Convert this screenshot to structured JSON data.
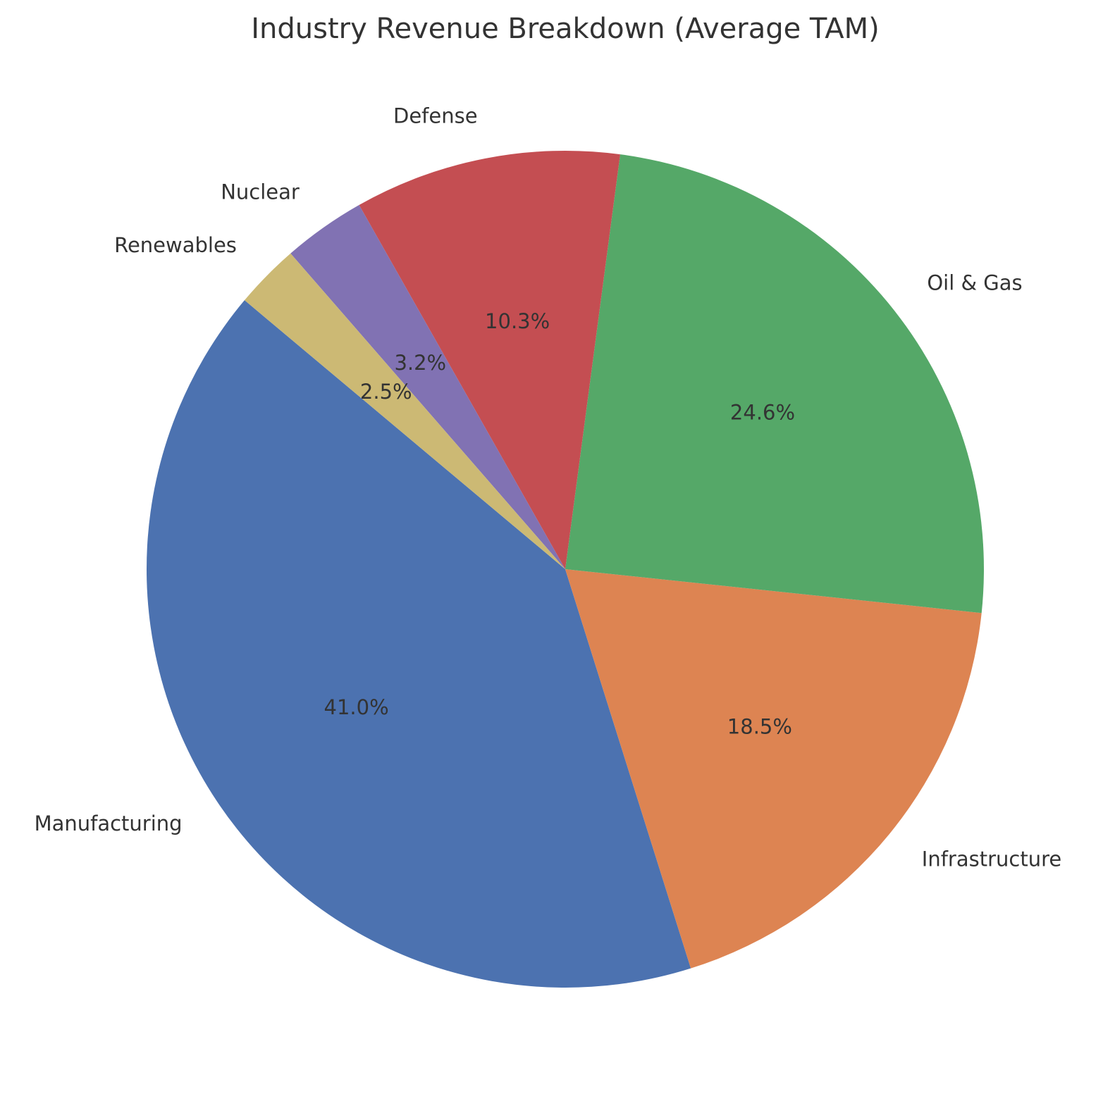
{
  "chart_data": {
    "type": "pie",
    "title": "Industry Revenue Breakdown (Average TAM)",
    "start_angle": 140,
    "direction": "counterclockwise",
    "slices": [
      {
        "label": "Manufacturing",
        "value": 41.0,
        "pct_label": "41.0%",
        "color": "#4c72b0"
      },
      {
        "label": "Infrastructure",
        "value": 18.5,
        "pct_label": "18.5%",
        "color": "#dd8452"
      },
      {
        "label": "Oil & Gas",
        "value": 24.6,
        "pct_label": "24.6%",
        "color": "#55a868"
      },
      {
        "label": "Defense",
        "value": 10.3,
        "pct_label": "10.3%",
        "color": "#c44e52"
      },
      {
        "label": "Nuclear",
        "value": 3.2,
        "pct_label": "3.2%",
        "color": "#8172b3"
      },
      {
        "label": "Renewables",
        "value": 2.5,
        "pct_label": "2.5%",
        "color": "#ccb974"
      }
    ]
  }
}
